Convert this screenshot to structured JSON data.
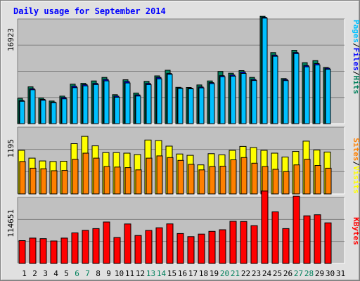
{
  "title": "Daily usage for September 2014",
  "colors": {
    "hits": "#00805c",
    "files": "#0000ff",
    "pages": "#00c0ff",
    "visits": "#ffff00",
    "sites": "#ff8000",
    "kbytes": "#ff0000",
    "weekend_label": "#00805c",
    "weekday_label": "#000000"
  },
  "panels": {
    "top": {
      "scale_label": "16923",
      "labels": [
        {
          "text": "Pages",
          "color": "#00c0ff"
        },
        {
          "text": "/",
          "color": "#000000"
        },
        {
          "text": "Files",
          "color": "#0000ff"
        },
        {
          "text": "/",
          "color": "#000000"
        },
        {
          "text": "Hits",
          "color": "#00805c"
        }
      ]
    },
    "middle": {
      "scale_label": "1195",
      "labels": [
        {
          "text": "Sites",
          "color": "#ff8000"
        },
        {
          "text": "/",
          "color": "#000000"
        },
        {
          "text": "Visits",
          "color": "#ffff00"
        }
      ]
    },
    "bottom": {
      "scale_label": "114651",
      "labels": [
        {
          "text": "KBytes",
          "color": "#ff0000"
        }
      ]
    }
  },
  "chart_data": {
    "type": "bar",
    "title": "Daily usage for September 2014",
    "categories": [
      "1",
      "2",
      "3",
      "4",
      "5",
      "6",
      "7",
      "8",
      "9",
      "10",
      "11",
      "12",
      "13",
      "14",
      "15",
      "16",
      "17",
      "18",
      "19",
      "20",
      "21",
      "22",
      "23",
      "24",
      "25",
      "26",
      "27",
      "28",
      "29",
      "30",
      "31"
    ],
    "weekend_days": [
      "6",
      "7",
      "13",
      "14",
      "20",
      "21",
      "27",
      "28"
    ],
    "panels": [
      {
        "name": "top",
        "ymax": 16923,
        "series": [
          {
            "name": "Hits",
            "values": [
              4080,
              5950,
              4130,
              3660,
              4450,
              6380,
              6520,
              6900,
              7470,
              4680,
              7100,
              4950,
              6840,
              7720,
              8630,
              5870,
              5850,
              6260,
              6900,
              8440,
              8160,
              8570,
              7470,
              17350,
              11490,
              7290,
              11870,
              9860,
              10190,
              9080,
              null
            ]
          },
          {
            "name": "Files",
            "values": [
              3740,
              5650,
              3920,
              3490,
              4220,
              6050,
              6310,
              6510,
              7140,
              4450,
              6820,
              4650,
              6510,
              7470,
              8110,
              5780,
              5720,
              5930,
              6630,
              7760,
              7860,
              8340,
              7140,
              17200,
              11080,
              7130,
              11500,
              9390,
              9710,
              8960,
              null
            ]
          },
          {
            "name": "Pages",
            "values": [
              3610,
              5480,
              3780,
              3400,
              4010,
              5820,
              6110,
              6330,
              6920,
              4270,
              6580,
              4460,
              6310,
              7250,
              7970,
              5690,
              5620,
              5780,
              6470,
              7590,
              7680,
              8120,
              6970,
              17060,
              10890,
              6960,
              11320,
              9190,
              9490,
              8790,
              null
            ]
          }
        ]
      },
      {
        "name": "middle",
        "ymax": 1195,
        "series": [
          {
            "name": "Visits",
            "values": [
              780,
              640,
              590,
              580,
              585,
              900,
              1030,
              860,
              740,
              740,
              730,
              705,
              965,
              955,
              855,
              715,
              690,
              520,
              720,
              700,
              780,
              850,
              830,
              780,
              730,
              660,
              760,
              945,
              785,
              750,
              null
            ]
          },
          {
            "name": "Sites",
            "values": [
              580,
              460,
              450,
              415,
              420,
              620,
              730,
              640,
              490,
              480,
              470,
              430,
              640,
              680,
              650,
              600,
              530,
              430,
              490,
              495,
              610,
              650,
              550,
              490,
              440,
              400,
              520,
              620,
              510,
              460,
              null
            ]
          }
        ]
      },
      {
        "name": "bottom",
        "ymax": 114651,
        "series": [
          {
            "name": "KBytes",
            "values": [
              39600,
              44000,
              43000,
              39000,
              44000,
              53000,
              57500,
              60500,
              72000,
              45000,
              68500,
              48500,
              57300,
              62000,
              68700,
              52000,
              46600,
              51000,
              55800,
              58600,
              73200,
              72800,
              65600,
              125800,
              89500,
              60500,
              116800,
              82700,
              84500,
              70500,
              null
            ]
          }
        ]
      }
    ]
  }
}
